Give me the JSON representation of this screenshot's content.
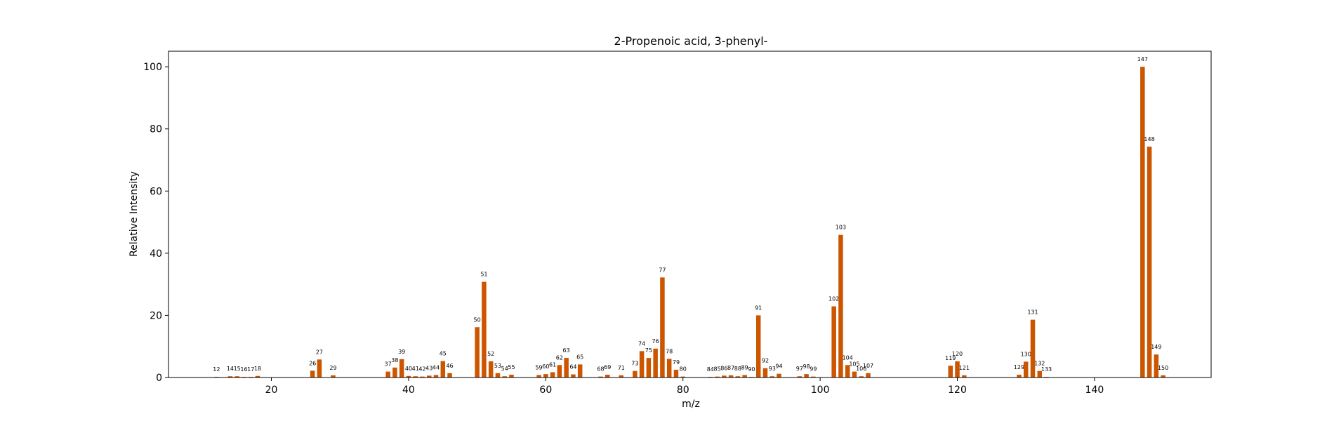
{
  "chart_data": {
    "type": "bar",
    "title": "2-Propenoic acid, 3-phenyl-",
    "xlabel": "m/z",
    "ylabel": "Relative Intensity",
    "xlim": [
      5,
      157
    ],
    "ylim": [
      0,
      105
    ],
    "xticks": [
      20,
      40,
      60,
      80,
      100,
      120,
      140
    ],
    "yticks": [
      0,
      20,
      40,
      60,
      80,
      100
    ],
    "grid": false,
    "bar_color": "#cc5500",
    "peaks": [
      {
        "mz": 12,
        "intensity": 0.2
      },
      {
        "mz": 14,
        "intensity": 0.4
      },
      {
        "mz": 15,
        "intensity": 0.4
      },
      {
        "mz": 16,
        "intensity": 0.2
      },
      {
        "mz": 17,
        "intensity": 0.2
      },
      {
        "mz": 18,
        "intensity": 0.5
      },
      {
        "mz": 26,
        "intensity": 2.2
      },
      {
        "mz": 27,
        "intensity": 5.8
      },
      {
        "mz": 29,
        "intensity": 0.7
      },
      {
        "mz": 37,
        "intensity": 1.9
      },
      {
        "mz": 38,
        "intensity": 3.2
      },
      {
        "mz": 39,
        "intensity": 5.9
      },
      {
        "mz": 40,
        "intensity": 0.5
      },
      {
        "mz": 41,
        "intensity": 0.4
      },
      {
        "mz": 42,
        "intensity": 0.3
      },
      {
        "mz": 43,
        "intensity": 0.6
      },
      {
        "mz": 44,
        "intensity": 0.8
      },
      {
        "mz": 45,
        "intensity": 5.3
      },
      {
        "mz": 46,
        "intensity": 1.4
      },
      {
        "mz": 50,
        "intensity": 16.2
      },
      {
        "mz": 51,
        "intensity": 30.8
      },
      {
        "mz": 52,
        "intensity": 5.2
      },
      {
        "mz": 53,
        "intensity": 1.4
      },
      {
        "mz": 54,
        "intensity": 0.4
      },
      {
        "mz": 55,
        "intensity": 0.9
      },
      {
        "mz": 59,
        "intensity": 0.8
      },
      {
        "mz": 60,
        "intensity": 1.1
      },
      {
        "mz": 61,
        "intensity": 1.7
      },
      {
        "mz": 62,
        "intensity": 4.0
      },
      {
        "mz": 63,
        "intensity": 6.3
      },
      {
        "mz": 64,
        "intensity": 1.0
      },
      {
        "mz": 65,
        "intensity": 4.2
      },
      {
        "mz": 68,
        "intensity": 0.3
      },
      {
        "mz": 69,
        "intensity": 0.9
      },
      {
        "mz": 71,
        "intensity": 0.7
      },
      {
        "mz": 73,
        "intensity": 2.1
      },
      {
        "mz": 74,
        "intensity": 8.5
      },
      {
        "mz": 75,
        "intensity": 6.3
      },
      {
        "mz": 76,
        "intensity": 9.3
      },
      {
        "mz": 77,
        "intensity": 32.2
      },
      {
        "mz": 78,
        "intensity": 6.0
      },
      {
        "mz": 79,
        "intensity": 2.5
      },
      {
        "mz": 80,
        "intensity": 0.3
      },
      {
        "mz": 84,
        "intensity": 0.2
      },
      {
        "mz": 85,
        "intensity": 0.3
      },
      {
        "mz": 86,
        "intensity": 0.6
      },
      {
        "mz": 87,
        "intensity": 0.7
      },
      {
        "mz": 88,
        "intensity": 0.4
      },
      {
        "mz": 89,
        "intensity": 0.8
      },
      {
        "mz": 90,
        "intensity": 0.2
      },
      {
        "mz": 91,
        "intensity": 20.0
      },
      {
        "mz": 92,
        "intensity": 3.0
      },
      {
        "mz": 93,
        "intensity": 0.4
      },
      {
        "mz": 94,
        "intensity": 1.2
      },
      {
        "mz": 97,
        "intensity": 0.4
      },
      {
        "mz": 98,
        "intensity": 1.1
      },
      {
        "mz": 99,
        "intensity": 0.3
      },
      {
        "mz": 102,
        "intensity": 22.9
      },
      {
        "mz": 103,
        "intensity": 45.9
      },
      {
        "mz": 104,
        "intensity": 4.0
      },
      {
        "mz": 105,
        "intensity": 1.9
      },
      {
        "mz": 106,
        "intensity": 0.4
      },
      {
        "mz": 107,
        "intensity": 1.4
      },
      {
        "mz": 119,
        "intensity": 3.8
      },
      {
        "mz": 120,
        "intensity": 5.2
      },
      {
        "mz": 121,
        "intensity": 0.7
      },
      {
        "mz": 129,
        "intensity": 0.9
      },
      {
        "mz": 130,
        "intensity": 5.1
      },
      {
        "mz": 131,
        "intensity": 18.6
      },
      {
        "mz": 132,
        "intensity": 2.1
      },
      {
        "mz": 133,
        "intensity": 0.2
      },
      {
        "mz": 147,
        "intensity": 100.0
      },
      {
        "mz": 148,
        "intensity": 74.3
      },
      {
        "mz": 149,
        "intensity": 7.4
      },
      {
        "mz": 150,
        "intensity": 0.7
      }
    ]
  }
}
